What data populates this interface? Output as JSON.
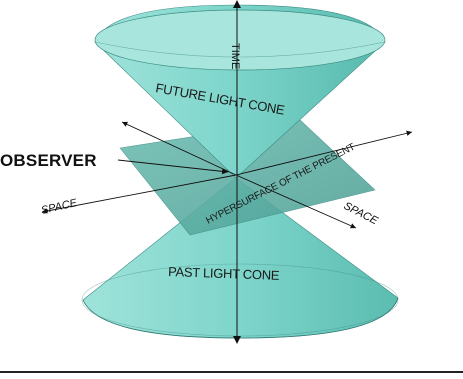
{
  "colors": {
    "cone_fill": "#7fd6cc",
    "cone_dark": "#4fb5aa",
    "plane": "#5fb3a8",
    "plane_dark": "#3f8f86",
    "axis": "#111111"
  },
  "labels": {
    "time": "TIME",
    "future_cone": "FUTURE LIGHT CONE",
    "past_cone": "PAST LIGHT CONE",
    "observer": "OBSERVER",
    "space_left": "SPACE",
    "space_right": "SPACE",
    "hypersurface": "HYPERSURFACE OF THE PRESENT"
  }
}
